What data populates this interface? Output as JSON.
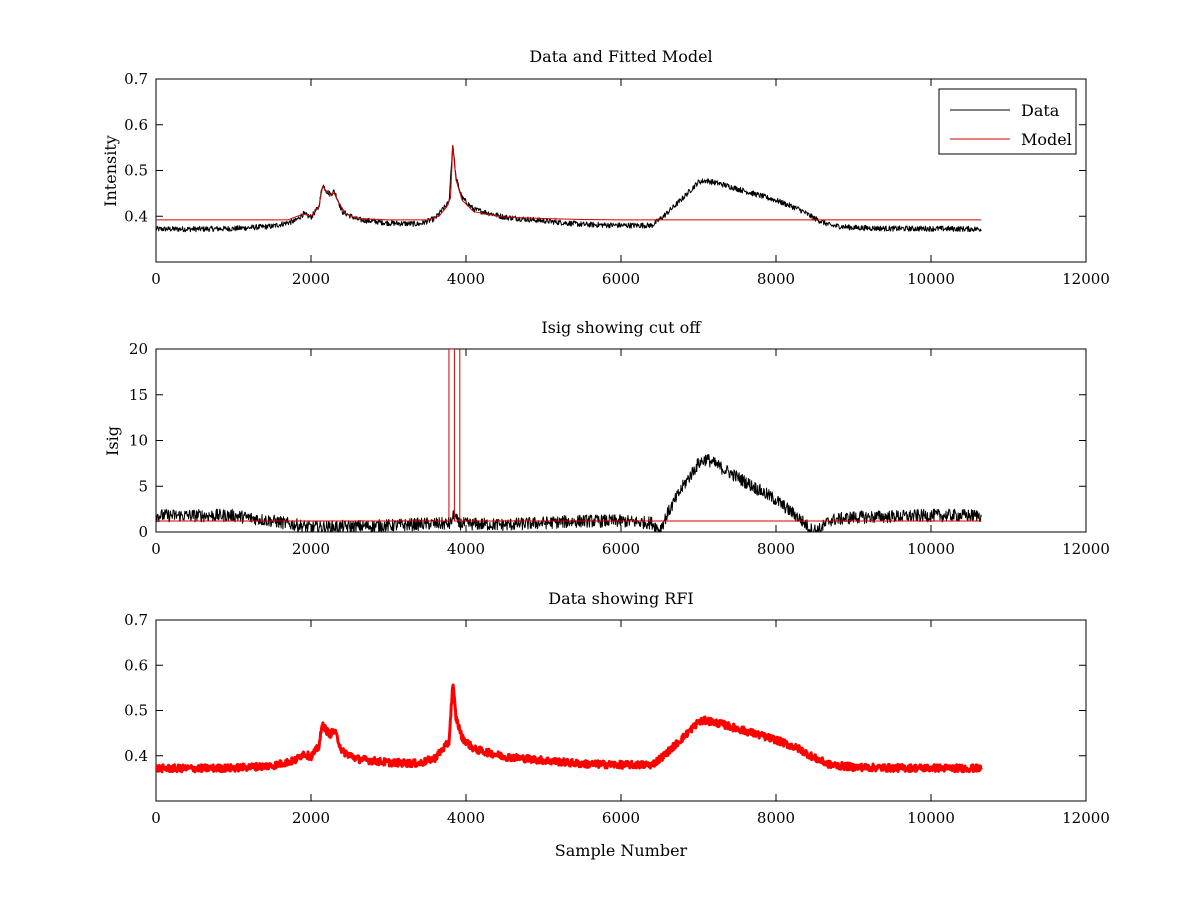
{
  "chart_data": [
    {
      "type": "line",
      "title": "Data and Fitted Model",
      "xlabel": "",
      "ylabel": "Intensity",
      "xlim": [
        0,
        12000
      ],
      "ylim": [
        0.3,
        0.7
      ],
      "xticks": [
        "0",
        "2000",
        "4000",
        "6000",
        "8000",
        "10000",
        "12000"
      ],
      "yticks": [
        "0.4",
        "0.5",
        "0.6",
        "0.7"
      ],
      "legend": {
        "placement": "top-right",
        "entries": [
          "Data",
          "Model"
        ]
      },
      "grid": false,
      "series": [
        {
          "name": "Data",
          "color": "#000000",
          "noise": 0.006,
          "points": [
            [
              0,
              0.372
            ],
            [
              500,
              0.372
            ],
            [
              1000,
              0.373
            ],
            [
              1500,
              0.378
            ],
            [
              1800,
              0.39
            ],
            [
              1900,
              0.405
            ],
            [
              2000,
              0.398
            ],
            [
              2100,
              0.42
            ],
            [
              2150,
              0.47
            ],
            [
              2200,
              0.455
            ],
            [
              2250,
              0.448
            ],
            [
              2300,
              0.455
            ],
            [
              2350,
              0.435
            ],
            [
              2400,
              0.41
            ],
            [
              2600,
              0.393
            ],
            [
              3000,
              0.385
            ],
            [
              3400,
              0.383
            ],
            [
              3600,
              0.395
            ],
            [
              3700,
              0.415
            ],
            [
              3780,
              0.43
            ],
            [
              3830,
              0.56
            ],
            [
              3870,
              0.485
            ],
            [
              3950,
              0.44
            ],
            [
              4100,
              0.415
            ],
            [
              4500,
              0.398
            ],
            [
              5000,
              0.39
            ],
            [
              5500,
              0.382
            ],
            [
              6000,
              0.38
            ],
            [
              6400,
              0.38
            ],
            [
              6550,
              0.4
            ],
            [
              6800,
              0.44
            ],
            [
              7000,
              0.475
            ],
            [
              7100,
              0.478
            ],
            [
              7300,
              0.47
            ],
            [
              7600,
              0.455
            ],
            [
              8000,
              0.435
            ],
            [
              8300,
              0.415
            ],
            [
              8500,
              0.395
            ],
            [
              8700,
              0.38
            ],
            [
              9000,
              0.375
            ],
            [
              9500,
              0.373
            ],
            [
              10000,
              0.373
            ],
            [
              10650,
              0.372
            ]
          ]
        },
        {
          "name": "Model",
          "color": "#d00000",
          "noise": 0,
          "points": [
            [
              0,
              0.392
            ],
            [
              1700,
              0.392
            ],
            [
              1900,
              0.405
            ],
            [
              2000,
              0.4
            ],
            [
              2100,
              0.42
            ],
            [
              2150,
              0.465
            ],
            [
              2200,
              0.455
            ],
            [
              2250,
              0.448
            ],
            [
              2300,
              0.45
            ],
            [
              2350,
              0.432
            ],
            [
              2450,
              0.405
            ],
            [
              2600,
              0.395
            ],
            [
              3000,
              0.392
            ],
            [
              3500,
              0.392
            ],
            [
              3650,
              0.4
            ],
            [
              3750,
              0.42
            ],
            [
              3800,
              0.44
            ],
            [
              3830,
              0.555
            ],
            [
              3870,
              0.48
            ],
            [
              3950,
              0.435
            ],
            [
              4100,
              0.41
            ],
            [
              4500,
              0.398
            ],
            [
              5000,
              0.395
            ],
            [
              5500,
              0.393
            ],
            [
              6000,
              0.392
            ],
            [
              10650,
              0.392
            ]
          ]
        }
      ]
    },
    {
      "type": "line",
      "title": "Isig showing cut off",
      "xlabel": "",
      "ylabel": "Isig",
      "xlim": [
        0,
        12000
      ],
      "ylim": [
        0,
        20
      ],
      "xticks": [
        "0",
        "2000",
        "4000",
        "6000",
        "8000",
        "10000",
        "12000"
      ],
      "yticks": [
        "0",
        "5",
        "10",
        "15",
        "20"
      ],
      "grid": false,
      "series": [
        {
          "name": "",
          "color": "#000000",
          "noise": 0.7,
          "points": [
            [
              0,
              1.8
            ],
            [
              1000,
              1.8
            ],
            [
              1500,
              1.2
            ],
            [
              2000,
              0.5
            ],
            [
              2500,
              0.6
            ],
            [
              3000,
              0.7
            ],
            [
              3500,
              0.9
            ],
            [
              3800,
              0.9
            ],
            [
              3850,
              2.0
            ],
            [
              3900,
              0.9
            ],
            [
              4500,
              0.8
            ],
            [
              5000,
              1.0
            ],
            [
              5500,
              1.2
            ],
            [
              6000,
              1.2
            ],
            [
              6400,
              1.0
            ],
            [
              6500,
              0.2
            ],
            [
              6600,
              2.0
            ],
            [
              6800,
              5.0
            ],
            [
              7000,
              7.5
            ],
            [
              7100,
              8.0
            ],
            [
              7300,
              7.0
            ],
            [
              7600,
              5.5
            ],
            [
              8000,
              3.5
            ],
            [
              8300,
              1.5
            ],
            [
              8450,
              0.3
            ],
            [
              8550,
              0.2
            ],
            [
              8700,
              1.3
            ],
            [
              9000,
              1.6
            ],
            [
              10000,
              1.8
            ],
            [
              10650,
              1.8
            ]
          ]
        },
        {
          "name": "",
          "color": "#d00000",
          "noise": 0,
          "points": [
            [
              0,
              1.2
            ],
            [
              3780,
              1.2
            ],
            [
              3780,
              20
            ],
            [
              3850,
              20
            ],
            [
              3850,
              1.2
            ],
            [
              3920,
              1.2
            ],
            [
              3920,
              20
            ],
            [
              3920,
              1.2
            ],
            [
              10650,
              1.2
            ]
          ]
        }
      ]
    },
    {
      "type": "line",
      "title": "Data showing RFI",
      "xlabel": "Sample Number",
      "ylabel": "",
      "xlim": [
        0,
        12000
      ],
      "ylim": [
        0.3,
        0.7
      ],
      "xticks": [
        "0",
        "2000",
        "4000",
        "6000",
        "8000",
        "10000",
        "12000"
      ],
      "yticks": [
        "0.4",
        "0.5",
        "0.6",
        "0.7"
      ],
      "grid": false,
      "series": [
        {
          "name": "",
          "color": "#ff0000",
          "noise": 0.008,
          "thick": true,
          "points": [
            [
              0,
              0.372
            ],
            [
              500,
              0.372
            ],
            [
              1000,
              0.373
            ],
            [
              1500,
              0.378
            ],
            [
              1800,
              0.39
            ],
            [
              1900,
              0.405
            ],
            [
              2000,
              0.398
            ],
            [
              2100,
              0.42
            ],
            [
              2150,
              0.47
            ],
            [
              2200,
              0.455
            ],
            [
              2250,
              0.448
            ],
            [
              2300,
              0.455
            ],
            [
              2350,
              0.435
            ],
            [
              2400,
              0.41
            ],
            [
              2600,
              0.393
            ],
            [
              3000,
              0.385
            ],
            [
              3400,
              0.383
            ],
            [
              3600,
              0.395
            ],
            [
              3700,
              0.415
            ],
            [
              3780,
              0.43
            ],
            [
              3830,
              0.56
            ],
            [
              3870,
              0.485
            ],
            [
              3950,
              0.44
            ],
            [
              4100,
              0.415
            ],
            [
              4500,
              0.398
            ],
            [
              5000,
              0.39
            ],
            [
              5500,
              0.382
            ],
            [
              6000,
              0.38
            ],
            [
              6400,
              0.38
            ],
            [
              6550,
              0.4
            ],
            [
              6800,
              0.44
            ],
            [
              7000,
              0.475
            ],
            [
              7100,
              0.478
            ],
            [
              7300,
              0.47
            ],
            [
              7600,
              0.455
            ],
            [
              8000,
              0.435
            ],
            [
              8300,
              0.415
            ],
            [
              8500,
              0.395
            ],
            [
              8700,
              0.38
            ],
            [
              9000,
              0.375
            ],
            [
              9500,
              0.373
            ],
            [
              10000,
              0.373
            ],
            [
              10650,
              0.372
            ]
          ]
        }
      ]
    }
  ]
}
